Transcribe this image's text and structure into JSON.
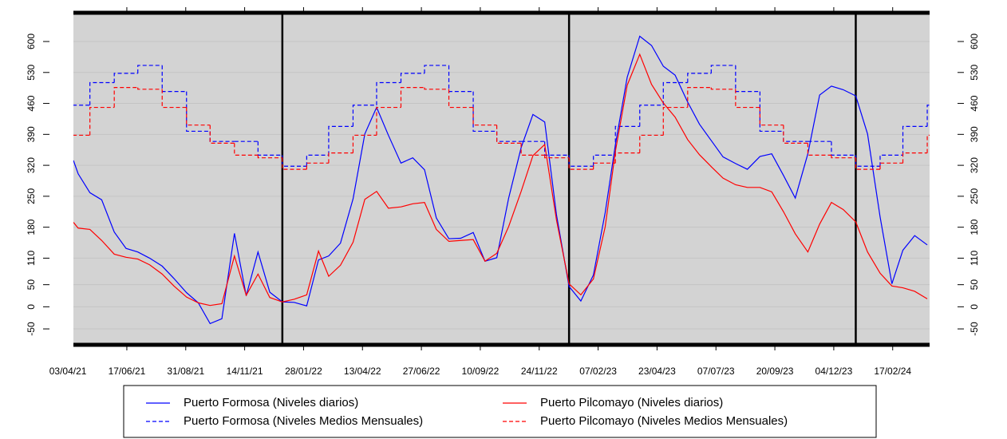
{
  "chart_data": {
    "type": "line",
    "xlim": [
      "2021-04-10",
      "2024-04-04"
    ],
    "ylim": [
      -86,
      665
    ],
    "yticks": [
      -50,
      0,
      50,
      110,
      180,
      250,
      320,
      390,
      460,
      530,
      600
    ],
    "xticks": [
      {
        "value": "2021-04-03",
        "label": "03/04/21"
      },
      {
        "value": "2021-06-17",
        "label": "17/06/21"
      },
      {
        "value": "2021-08-31",
        "label": "31/08/21"
      },
      {
        "value": "2021-11-14",
        "label": "14/11/21"
      },
      {
        "value": "2022-01-28",
        "label": "28/01/22"
      },
      {
        "value": "2022-04-13",
        "label": "13/04/22"
      },
      {
        "value": "2022-06-27",
        "label": "27/06/22"
      },
      {
        "value": "2022-09-10",
        "label": "10/09/22"
      },
      {
        "value": "2022-11-24",
        "label": "24/11/22"
      },
      {
        "value": "2023-02-07",
        "label": "07/02/23"
      },
      {
        "value": "2023-04-23",
        "label": "23/04/23"
      },
      {
        "value": "2023-07-07",
        "label": "07/07/23"
      },
      {
        "value": "2023-09-20",
        "label": "20/09/23"
      },
      {
        "value": "2023-12-04",
        "label": "04/12/23"
      },
      {
        "value": "2024-02-17",
        "label": "17/02/24"
      }
    ],
    "vlines": [
      "2022-01-01",
      "2023-01-01",
      "2024-01-01"
    ],
    "background": "#d3d3d3",
    "legend": "bottom",
    "series": [
      {
        "name": "Puerto Formosa (Niveles diarios)",
        "color": "#0000ff",
        "linestyle": "solid",
        "x": [
          "2021-04-10",
          "2021-04-16",
          "2021-05-01",
          "2021-05-16",
          "2021-06-01",
          "2021-06-16",
          "2021-07-01",
          "2021-07-16",
          "2021-08-01",
          "2021-08-16",
          "2021-09-01",
          "2021-09-16",
          "2021-10-01",
          "2021-10-16",
          "2021-11-01",
          "2021-11-16",
          "2021-12-01",
          "2021-12-16",
          "2022-01-01",
          "2022-01-16",
          "2022-02-01",
          "2022-02-16",
          "2022-03-01",
          "2022-03-16",
          "2022-04-01",
          "2022-04-16",
          "2022-05-01",
          "2022-05-16",
          "2022-06-01",
          "2022-06-16",
          "2022-07-01",
          "2022-07-16",
          "2022-08-01",
          "2022-08-16",
          "2022-09-01",
          "2022-09-16",
          "2022-10-01",
          "2022-10-16",
          "2022-11-01",
          "2022-11-16",
          "2022-12-01",
          "2022-12-16",
          "2023-01-01",
          "2023-01-16",
          "2023-02-01",
          "2023-02-16",
          "2023-03-01",
          "2023-03-16",
          "2023-04-01",
          "2023-04-16",
          "2023-05-01",
          "2023-05-16",
          "2023-06-01",
          "2023-06-16",
          "2023-07-01",
          "2023-07-16",
          "2023-08-01",
          "2023-08-16",
          "2023-09-01",
          "2023-09-16",
          "2023-10-01",
          "2023-10-16",
          "2023-11-01",
          "2023-11-16",
          "2023-12-01",
          "2023-12-16",
          "2024-01-01",
          "2024-01-16",
          "2024-02-01",
          "2024-02-16",
          "2024-03-01",
          "2024-03-16",
          "2024-04-01"
        ],
        "values": [
          331,
          301,
          258,
          242,
          169,
          132,
          124,
          110,
          92,
          64,
          32,
          9,
          -38,
          -27,
          166,
          25,
          124,
          33,
          11,
          10,
          2,
          106,
          115,
          144,
          244,
          391,
          451,
          388,
          325,
          337,
          310,
          201,
          154,
          155,
          168,
          103,
          111,
          245,
          360,
          435,
          418,
          208,
          46,
          13,
          72,
          213,
          367,
          519,
          612,
          591,
          544,
          524,
          463,
          413,
          376,
          339,
          324,
          311,
          340,
          346,
          297,
          246,
          346,
          479,
          499,
          491,
          477,
          391,
          203,
          52,
          128,
          161,
          140
        ]
      },
      {
        "name": "Puerto Formosa (Niveles Medios Mensuales)",
        "color": "#0000ff",
        "linestyle": "dashed",
        "drawstyle": "steps-post",
        "x": [
          "2021-04-01",
          "2021-05-01",
          "2021-06-01",
          "2021-07-01",
          "2021-08-01",
          "2021-09-01",
          "2021-10-01",
          "2021-11-01",
          "2021-12-01",
          "2022-01-01",
          "2022-02-01",
          "2022-03-01",
          "2022-04-01",
          "2022-05-01",
          "2022-06-01",
          "2022-07-01",
          "2022-08-01",
          "2022-09-01",
          "2022-10-01",
          "2022-11-01",
          "2022-12-01",
          "2023-01-01",
          "2023-02-01",
          "2023-03-01",
          "2023-04-01",
          "2023-05-01",
          "2023-06-01",
          "2023-07-01",
          "2023-08-01",
          "2023-09-01",
          "2023-10-01",
          "2023-11-01",
          "2023-12-01",
          "2024-01-01",
          "2024-02-01",
          "2024-03-01",
          "2024-04-01"
        ],
        "values": [
          456,
          507,
          528,
          546,
          487,
          397,
          374,
          374,
          343,
          318,
          343,
          408,
          456,
          507,
          528,
          546,
          487,
          397,
          374,
          374,
          343,
          318,
          343,
          408,
          456,
          507,
          528,
          546,
          487,
          397,
          374,
          374,
          343,
          318,
          343,
          408,
          456
        ]
      },
      {
        "name": "Puerto Pilcomayo (Niveles diarios)",
        "color": "#ff0000",
        "linestyle": "solid",
        "x": [
          "2021-04-10",
          "2021-04-16",
          "2021-05-01",
          "2021-05-16",
          "2021-06-01",
          "2021-06-16",
          "2021-07-01",
          "2021-07-16",
          "2021-08-01",
          "2021-08-16",
          "2021-09-01",
          "2021-09-16",
          "2021-10-01",
          "2021-10-16",
          "2021-11-01",
          "2021-11-16",
          "2021-12-01",
          "2021-12-16",
          "2022-01-01",
          "2022-01-16",
          "2022-02-01",
          "2022-02-16",
          "2022-03-01",
          "2022-03-16",
          "2022-04-01",
          "2022-04-16",
          "2022-05-01",
          "2022-05-16",
          "2022-06-01",
          "2022-06-16",
          "2022-07-01",
          "2022-07-16",
          "2022-08-01",
          "2022-08-16",
          "2022-09-01",
          "2022-09-16",
          "2022-10-01",
          "2022-10-16",
          "2022-11-01",
          "2022-11-16",
          "2022-12-01",
          "2022-12-16",
          "2023-01-01",
          "2023-01-16",
          "2023-02-01",
          "2023-02-16",
          "2023-03-01",
          "2023-03-16",
          "2023-04-01",
          "2023-04-16",
          "2023-05-01",
          "2023-05-16",
          "2023-06-01",
          "2023-06-16",
          "2023-07-01",
          "2023-07-16",
          "2023-08-01",
          "2023-08-16",
          "2023-09-01",
          "2023-09-16",
          "2023-10-01",
          "2023-10-16",
          "2023-11-01",
          "2023-11-16",
          "2023-12-01",
          "2023-12-16",
          "2024-01-01",
          "2024-01-16",
          "2024-02-01",
          "2024-02-16",
          "2024-03-01",
          "2024-03-16",
          "2024-04-01"
        ],
        "values": [
          191,
          178,
          175,
          150,
          119,
          112,
          108,
          95,
          74,
          47,
          22,
          9,
          3,
          7,
          115,
          26,
          74,
          21,
          11,
          17,
          27,
          126,
          69,
          94,
          146,
          243,
          261,
          223,
          226,
          233,
          236,
          175,
          148,
          150,
          152,
          103,
          121,
          181,
          261,
          342,
          367,
          196,
          52,
          27,
          63,
          181,
          352,
          501,
          571,
          503,
          461,
          429,
          378,
          344,
          317,
          291,
          276,
          270,
          270,
          260,
          215,
          165,
          124,
          187,
          236,
          220,
          192,
          124,
          76,
          47,
          43,
          35,
          18
        ]
      },
      {
        "name": "Puerto Pilcomayo (Niveles Medios Mensuales)",
        "color": "#ff0000",
        "linestyle": "dashed",
        "drawstyle": "steps-post",
        "x": [
          "2021-04-01",
          "2021-05-01",
          "2021-06-01",
          "2021-07-01",
          "2021-08-01",
          "2021-09-01",
          "2021-10-01",
          "2021-11-01",
          "2021-12-01",
          "2022-01-01",
          "2022-02-01",
          "2022-03-01",
          "2022-04-01",
          "2022-05-01",
          "2022-06-01",
          "2022-07-01",
          "2022-08-01",
          "2022-09-01",
          "2022-10-01",
          "2022-11-01",
          "2022-12-01",
          "2023-01-01",
          "2023-02-01",
          "2023-03-01",
          "2023-04-01",
          "2023-05-01",
          "2023-06-01",
          "2023-07-01",
          "2023-08-01",
          "2023-09-01",
          "2023-10-01",
          "2023-11-01",
          "2023-12-01",
          "2024-01-01",
          "2024-02-01",
          "2024-03-01",
          "2024-04-01"
        ],
        "values": [
          388,
          451,
          496,
          492,
          451,
          411,
          370,
          343,
          337,
          311,
          325,
          348,
          388,
          451,
          496,
          492,
          451,
          411,
          370,
          343,
          337,
          311,
          325,
          348,
          388,
          451,
          496,
          492,
          451,
          411,
          370,
          343,
          337,
          311,
          325,
          348,
          388
        ]
      }
    ]
  }
}
